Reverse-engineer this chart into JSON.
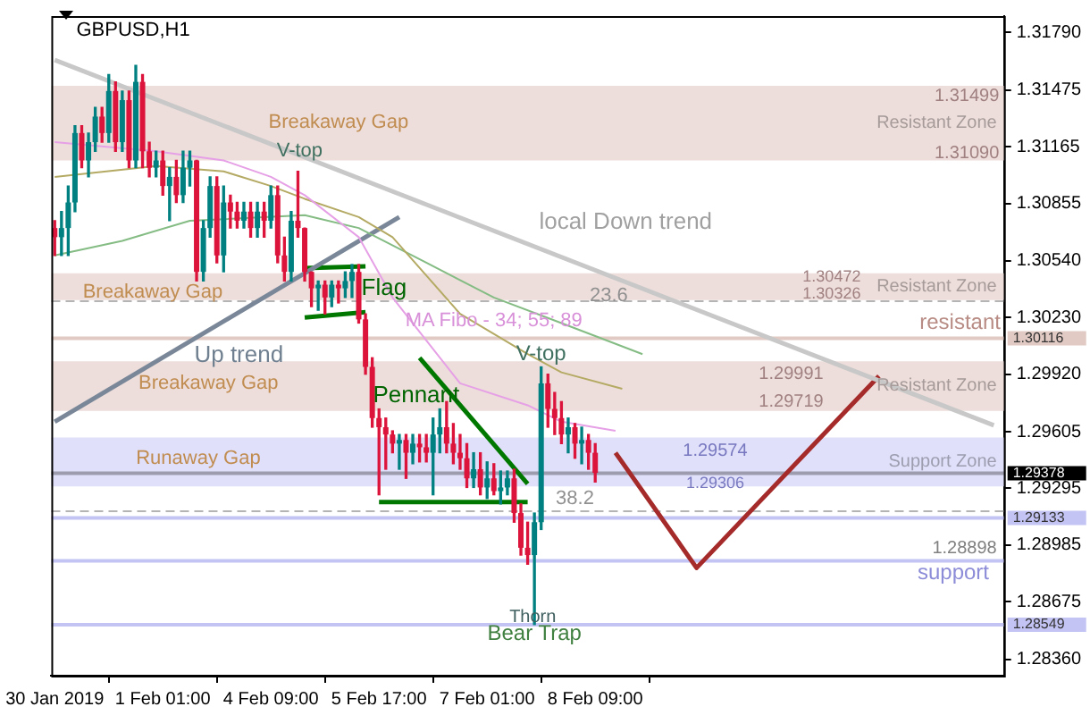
{
  "chart_data": {
    "type": "candlestick",
    "title": "GBPUSD,H1",
    "categories": [
      "30 Jan 2019",
      null,
      null,
      null,
      null,
      null,
      null,
      null,
      null,
      null,
      null,
      null,
      null,
      null,
      null,
      null,
      "1 Feb 01:00",
      null,
      null,
      null,
      null,
      null,
      null,
      null,
      null,
      null,
      null,
      null,
      null,
      null,
      null,
      null,
      "4 Feb 09:00",
      null,
      null,
      null,
      null,
      null,
      null,
      null,
      null,
      null,
      null,
      null,
      null,
      null,
      null,
      null,
      "5 Feb 17:00",
      null,
      null,
      null,
      null,
      null,
      null,
      null,
      null,
      null,
      null,
      null,
      null,
      null,
      null,
      null,
      "7 Feb 01:00",
      null,
      null,
      null,
      null,
      null,
      null,
      null,
      null,
      null,
      null,
      null,
      null,
      null,
      null,
      null,
      "8 Feb 09:00",
      null,
      null,
      null,
      null,
      null,
      null,
      null,
      null,
      null,
      null,
      null,
      null,
      null,
      null,
      null,
      null,
      null,
      null,
      null,
      null,
      null,
      null,
      null,
      null,
      null,
      null,
      null,
      null,
      null,
      null,
      null,
      null,
      null,
      null,
      null,
      null,
      null,
      null,
      null,
      null,
      null,
      null,
      null,
      null,
      null,
      null,
      null,
      null,
      null,
      null,
      null,
      null,
      null,
      null,
      null,
      null,
      null,
      null,
      null,
      null
    ],
    "ohlc": [
      [
        1.3072,
        1.3076,
        1.3057,
        1.3067
      ],
      [
        1.3067,
        1.3081,
        1.3057,
        1.3072
      ],
      [
        1.3072,
        1.3095,
        1.3057,
        1.3086
      ],
      [
        1.3086,
        1.3128,
        1.3081,
        1.3124
      ],
      [
        1.3124,
        1.3128,
        1.3105,
        1.3109
      ],
      [
        1.3109,
        1.3124,
        1.31,
        1.3119
      ],
      [
        1.3119,
        1.3138,
        1.3114,
        1.3133
      ],
      [
        1.3133,
        1.3138,
        1.3119,
        1.3124
      ],
      [
        1.3124,
        1.3156,
        1.3119,
        1.3147
      ],
      [
        1.3147,
        1.3152,
        1.3114,
        1.3119
      ],
      [
        1.3119,
        1.3147,
        1.3114,
        1.3142
      ],
      [
        1.3142,
        1.3147,
        1.3105,
        1.3109
      ],
      [
        1.3109,
        1.3161,
        1.3105,
        1.3152
      ],
      [
        1.3152,
        1.3156,
        1.3105,
        1.3114
      ],
      [
        1.3114,
        1.3119,
        1.31,
        1.3105
      ],
      [
        1.3105,
        1.3114,
        1.31,
        1.3109
      ],
      [
        1.3109,
        1.3114,
        1.309,
        1.3095
      ],
      [
        1.3095,
        1.3105,
        1.3076,
        1.31
      ],
      [
        1.31,
        1.3109,
        1.3086,
        1.309
      ],
      [
        1.309,
        1.3114,
        1.3086,
        1.3105
      ],
      [
        1.3105,
        1.3114,
        1.3095,
        1.3109
      ],
      [
        1.3109,
        1.3109,
        1.3043,
        1.3048
      ],
      [
        1.3048,
        1.3076,
        1.3043,
        1.3072
      ],
      [
        1.3072,
        1.31,
        1.3067,
        1.3095
      ],
      [
        1.3095,
        1.31,
        1.3053,
        1.3057
      ],
      [
        1.3057,
        1.3095,
        1.3048,
        1.3086
      ],
      [
        1.3086,
        1.309,
        1.3072,
        1.3081
      ],
      [
        1.3081,
        1.3086,
        1.3072,
        1.3076
      ],
      [
        1.3076,
        1.3086,
        1.3072,
        1.3081
      ],
      [
        1.3081,
        1.3086,
        1.3067,
        1.3072
      ],
      [
        1.3072,
        1.3086,
        1.3067,
        1.3081
      ],
      [
        1.3081,
        1.3086,
        1.3067,
        1.3076
      ],
      [
        1.3076,
        1.3095,
        1.3072,
        1.309
      ],
      [
        1.309,
        1.3095,
        1.3053,
        1.3057
      ],
      [
        1.3057,
        1.3067,
        1.3043,
        1.3048
      ],
      [
        1.3048,
        1.3081,
        1.3043,
        1.3076
      ],
      [
        1.3076,
        1.3103,
        1.3067,
        1.3072
      ],
      [
        1.3072,
        1.3072,
        1.3043,
        1.3048
      ],
      [
        1.3048,
        1.3048,
        1.3029,
        1.3039
      ],
      [
        1.3039,
        1.3043,
        1.3027,
        1.3041
      ],
      [
        1.3041,
        1.3043,
        1.3025,
        1.3034
      ],
      [
        1.3034,
        1.3043,
        1.3029,
        1.3041
      ],
      [
        1.3041,
        1.3043,
        1.3031,
        1.3039
      ],
      [
        1.3039,
        1.3048,
        1.3034,
        1.3043
      ],
      [
        1.3043,
        1.3052,
        1.3034,
        1.3048
      ],
      [
        1.3048,
        1.3052,
        1.302,
        1.3022
      ],
      [
        1.3022,
        1.3025,
        1.2992,
        1.2996
      ],
      [
        1.2996,
        1.3001,
        1.2963,
        1.2968
      ],
      [
        1.2968,
        1.2973,
        1.2926,
        1.2963
      ],
      [
        1.2963,
        1.2968,
        1.294,
        1.2959
      ],
      [
        1.2959,
        1.2961,
        1.2949,
        1.2954
      ],
      [
        1.2954,
        1.2959,
        1.294,
        1.2956
      ],
      [
        1.2956,
        1.2959,
        1.2935,
        1.2949
      ],
      [
        1.2949,
        1.2959,
        1.2943,
        1.2954
      ],
      [
        1.2954,
        1.2959,
        1.2944,
        1.2952
      ],
      [
        1.2952,
        1.2959,
        1.2944,
        1.2949
      ],
      [
        1.2949,
        1.2968,
        1.2926,
        1.2959
      ],
      [
        1.2959,
        1.2973,
        1.2949,
        1.2963
      ],
      [
        1.2963,
        1.2977,
        1.2949,
        1.2954
      ],
      [
        1.2954,
        1.2965,
        1.2943,
        1.2949
      ],
      [
        1.2949,
        1.2959,
        1.294,
        1.2946
      ],
      [
        1.2946,
        1.2954,
        1.293,
        1.2935
      ],
      [
        1.2935,
        1.2949,
        1.293,
        1.294
      ],
      [
        1.294,
        1.2949,
        1.2926,
        1.293
      ],
      [
        1.293,
        1.2944,
        1.2924,
        1.2935
      ],
      [
        1.2935,
        1.2943,
        1.2926,
        1.2928
      ],
      [
        1.2928,
        1.2939,
        1.2921,
        1.293
      ],
      [
        1.293,
        1.2939,
        1.2926,
        1.2935
      ],
      [
        1.2935,
        1.294,
        1.2911,
        1.2916
      ],
      [
        1.2916,
        1.2921,
        1.2893,
        1.2897
      ],
      [
        1.2897,
        1.2911,
        1.2888,
        1.2893
      ],
      [
        1.2893,
        1.2916,
        1.2855,
        1.2911
      ],
      [
        1.2911,
        1.2996,
        1.2907,
        1.2987
      ],
      [
        1.2987,
        1.2992,
        1.2963,
        1.2973
      ],
      [
        1.2973,
        1.2982,
        1.2959,
        1.2968
      ],
      [
        1.2968,
        1.2977,
        1.2954,
        1.2959
      ],
      [
        1.2959,
        1.2968,
        1.2949,
        1.2963
      ],
      [
        1.2963,
        1.2965,
        1.2946,
        1.2954
      ],
      [
        1.2954,
        1.2963,
        1.2943,
        1.2956
      ],
      [
        1.2956,
        1.2959,
        1.294,
        1.2949
      ],
      [
        1.2949,
        1.2954,
        1.2933,
        1.2938
      ],
      null,
      null,
      null,
      null,
      null,
      null,
      null,
      null,
      null,
      null,
      null,
      null,
      null,
      null,
      null,
      null,
      null,
      null,
      null,
      null,
      null,
      null,
      null,
      null,
      null,
      null,
      null,
      null,
      null,
      null,
      null,
      null,
      null,
      null,
      null,
      null,
      null,
      null,
      null,
      null,
      null,
      null,
      null,
      null,
      null,
      null,
      null,
      null,
      null,
      null,
      null,
      null,
      null,
      null,
      null,
      null,
      null,
      null,
      null,
      null
    ],
    "colors": [
      "#dc143c",
      "#008080",
      "#008080",
      "#008080",
      "#dc143c",
      "#008080",
      "#008080",
      "#dc143c",
      "#008080",
      "#dc143c",
      "#008080",
      "#dc143c",
      "#008080",
      "#dc143c",
      "#dc143c",
      "#008080",
      "#dc143c",
      "#008080",
      "#dc143c",
      "#008080",
      "#008080",
      "#dc143c",
      "#008080",
      "#008080",
      "#dc143c",
      "#008080",
      "#dc143c",
      "#dc143c",
      "#008080",
      "#dc143c",
      "#008080",
      "#dc143c",
      "#008080",
      "#dc143c",
      "#dc143c",
      "#008080",
      "#dc143c",
      "#dc143c",
      "#dc143c",
      "#008080",
      "#dc143c",
      "#008080",
      "#dc143c",
      "#008080",
      "#008080",
      "#dc143c",
      "#dc143c",
      "#dc143c",
      "#dc143c",
      "#dc143c",
      "#dc143c",
      "#008080",
      "#dc143c",
      "#008080",
      "#dc143c",
      "#dc143c",
      "#008080",
      "#008080",
      "#dc143c",
      "#dc143c",
      "#dc143c",
      "#dc143c",
      "#008080",
      "#dc143c",
      "#008080",
      "#dc143c",
      "#008080",
      "#008080",
      "#dc143c",
      "#dc143c",
      "#dc143c",
      "#008080",
      "#008080",
      "#dc143c",
      "#dc143c",
      "#dc143c",
      "#008080",
      "#dc143c",
      "#008080",
      "#dc143c",
      "#dc143c",
      null,
      null,
      null,
      null,
      null,
      null,
      null,
      null,
      null,
      null,
      null,
      null,
      null,
      null,
      null,
      null,
      null,
      null,
      null,
      null,
      null,
      null,
      null,
      null,
      null,
      null,
      null,
      null,
      null,
      null,
      null,
      null,
      null,
      null,
      null,
      null,
      null,
      null,
      null,
      null,
      null,
      null,
      null,
      null,
      null,
      null,
      null,
      null,
      null,
      null,
      null,
      null,
      null,
      null,
      null,
      null,
      null,
      null,
      null,
      null
    ],
    "series": [
      {
        "type": "line",
        "color": "#e6a0e6",
        "values": [
          1.3119,
          null,
          null,
          null,
          null,
          null,
          null,
          null,
          null,
          null,
          null,
          null,
          null,
          null,
          null,
          1.3114,
          null,
          null,
          null,
          null,
          null,
          null,
          null,
          null,
          null,
          1.3109,
          null,
          null,
          null,
          null,
          null,
          null,
          1.31,
          null,
          null,
          null,
          null,
          1.309,
          null,
          null,
          null,
          null,
          null,
          null,
          null,
          1.3067,
          null,
          null,
          null,
          null,
          1.3034,
          null,
          null,
          null,
          null,
          null,
          null,
          null,
          null,
          null,
          1.2987,
          null,
          null,
          null,
          null,
          null,
          null,
          null,
          null,
          null,
          1.2975,
          null,
          null,
          null,
          null,
          1.2966,
          null,
          null,
          null,
          null,
          null,
          null,
          null,
          1.2961,
          null,
          null,
          null,
          null,
          null,
          null,
          null,
          null,
          null,
          null,
          null,
          null,
          null,
          null,
          null,
          null,
          null,
          null,
          null,
          null,
          null,
          null,
          null,
          null,
          null,
          null,
          null,
          null,
          null,
          null,
          null,
          null,
          null,
          null,
          null,
          null,
          null,
          null,
          null,
          null,
          null,
          null,
          null,
          null,
          null,
          null,
          null,
          null,
          null,
          null,
          null,
          null,
          null,
          null,
          null,
          null,
          null
        ]
      },
      {
        "type": "line",
        "color": "#b4aa64",
        "values": [
          1.31,
          null,
          null,
          null,
          null,
          null,
          null,
          null,
          null,
          null,
          null,
          null,
          null,
          null,
          null,
          1.3106,
          null,
          null,
          null,
          null,
          null,
          null,
          null,
          null,
          null,
          1.3103,
          null,
          null,
          null,
          null,
          null,
          null,
          1.3095,
          null,
          null,
          null,
          null,
          1.3088,
          null,
          null,
          null,
          null,
          null,
          null,
          null,
          1.3078,
          null,
          null,
          null,
          null,
          1.3067,
          null,
          null,
          null,
          null,
          null,
          null,
          null,
          null,
          null,
          1.3025,
          null,
          null,
          null,
          null,
          null,
          null,
          null,
          null,
          null,
          1.3003,
          null,
          null,
          null,
          null,
          1.2993,
          null,
          null,
          null,
          null,
          null,
          null,
          null,
          null,
          1.2984,
          null,
          null,
          null,
          null,
          null,
          null,
          null,
          null,
          null,
          null,
          null,
          null,
          null,
          null,
          null,
          null,
          null,
          null,
          null,
          null,
          null,
          null,
          null,
          null,
          null,
          null,
          null,
          null,
          null,
          null,
          null,
          null,
          null,
          null,
          null,
          null,
          null,
          null,
          null,
          null,
          null,
          null,
          null,
          null,
          null,
          null,
          null,
          null,
          null,
          null,
          null,
          null,
          null,
          null,
          null,
          null
        ]
      },
      {
        "type": "line",
        "color": "#84bc84",
        "values": [
          1.3057,
          null,
          null,
          null,
          null,
          null,
          null,
          null,
          null,
          null,
          1.3065,
          null,
          null,
          null,
          null,
          null,
          null,
          null,
          null,
          null,
          1.3076,
          null,
          null,
          null,
          null,
          null,
          null,
          null,
          null,
          null,
          null,
          null,
          null,
          null,
          null,
          null,
          null,
          1.3079,
          null,
          null,
          null,
          null,
          null,
          null,
          null,
          1.3072,
          null,
          null,
          null,
          null,
          null,
          null,
          null,
          null,
          null,
          1.3053,
          null,
          null,
          null,
          null,
          null,
          null,
          null,
          null,
          null,
          1.3034,
          null,
          null,
          null,
          null,
          null,
          null,
          null,
          null,
          null,
          1.302,
          null,
          null,
          null,
          null,
          null,
          null,
          null,
          null,
          null,
          null,
          null,
          1.3003,
          null,
          null,
          null,
          null,
          null,
          null,
          null,
          null,
          null,
          null,
          null,
          null,
          null,
          null,
          null,
          null,
          null,
          null,
          null,
          null,
          null,
          null,
          null,
          null,
          null,
          null,
          null,
          null,
          null,
          null,
          null,
          null,
          null,
          null,
          null,
          null,
          null,
          null,
          null,
          null,
          null,
          null,
          null,
          null,
          null,
          null,
          null,
          null,
          null,
          null,
          null,
          null,
          null
        ]
      },
      {
        "type": "line",
        "color": "#c8c8c8",
        "values": [
          1.3164,
          null,
          null,
          null,
          null,
          null,
          null,
          null,
          null,
          null,
          null,
          null,
          null,
          null,
          null,
          null,
          null,
          null,
          null,
          null,
          null,
          null,
          null,
          null,
          null,
          null,
          null,
          null,
          null,
          null,
          null,
          null,
          null,
          null,
          null,
          null,
          null,
          null,
          null,
          null,
          null,
          null,
          null,
          null,
          null,
          null,
          null,
          null,
          null,
          null,
          null,
          null,
          null,
          null,
          null,
          null,
          null,
          null,
          null,
          null,
          null,
          null,
          null,
          null,
          null,
          null,
          null,
          null,
          null,
          null,
          null,
          null,
          null,
          null,
          null,
          null,
          null,
          null,
          null,
          null,
          null,
          null,
          null,
          null,
          null,
          null,
          null,
          null,
          null,
          null,
          null,
          null,
          null,
          null,
          null,
          null,
          null,
          null,
          null,
          null,
          null,
          null,
          null,
          null,
          null,
          null,
          null,
          null,
          null,
          null,
          null,
          null,
          null,
          null,
          null,
          null,
          null,
          null,
          null,
          null,
          null,
          null,
          null,
          null,
          null,
          null,
          null,
          null,
          null,
          null,
          null,
          null,
          null,
          null,
          null,
          null,
          null,
          null,
          null,
          1.2964,
          null
        ]
      },
      {
        "type": "line",
        "color": "#7a8798",
        "values": [
          1.2966,
          null,
          null,
          null,
          null,
          null,
          null,
          null,
          null,
          null,
          null,
          null,
          null,
          null,
          null,
          null,
          null,
          null,
          null,
          null,
          null,
          null,
          null,
          null,
          null,
          null,
          null,
          null,
          null,
          null,
          null,
          null,
          null,
          null,
          null,
          null,
          null,
          null,
          null,
          null,
          null,
          null,
          null,
          null,
          null,
          null,
          null,
          null,
          null,
          null,
          null,
          1.3078,
          null,
          null,
          null,
          null,
          null,
          null,
          null,
          null,
          null,
          null,
          null,
          null,
          null,
          null,
          null,
          null,
          null,
          null,
          null,
          null,
          null,
          null,
          null,
          null,
          null,
          null,
          null,
          null,
          null,
          null,
          null,
          null,
          null,
          null,
          null,
          null,
          null,
          null,
          null,
          null,
          null,
          null,
          null,
          null,
          null,
          null,
          null,
          null,
          null,
          null,
          null,
          null,
          null,
          null,
          null,
          null,
          null,
          null,
          null,
          null,
          null,
          null,
          null,
          null,
          null,
          null,
          null,
          null,
          null,
          null,
          null,
          null,
          null,
          null,
          null,
          null,
          null,
          null,
          null,
          null,
          null,
          null,
          null,
          null,
          null,
          null,
          null,
          null,
          null
        ]
      },
      {
        "type": "line",
        "color": "#007800",
        "values": [
          null,
          null,
          null,
          null,
          null,
          null,
          null,
          null,
          null,
          null,
          null,
          null,
          null,
          null,
          null,
          null,
          null,
          null,
          null,
          null,
          null,
          null,
          null,
          null,
          null,
          null,
          null,
          null,
          null,
          null,
          null,
          null,
          null,
          null,
          null,
          null,
          null,
          1.305,
          null,
          null,
          null,
          null,
          null,
          null,
          null,
          null,
          1.3051,
          null,
          null,
          null,
          null,
          null,
          null,
          null,
          null,
          null,
          null,
          null,
          null,
          null,
          null,
          null,
          null,
          null,
          null,
          null,
          null,
          null,
          null,
          null,
          null,
          null,
          null,
          null,
          null,
          null,
          null,
          null,
          null,
          null,
          null,
          null,
          null,
          null,
          null,
          null,
          null,
          null,
          null,
          null,
          null,
          null,
          null,
          null,
          null,
          null,
          null,
          null,
          null,
          null,
          null,
          null,
          null,
          null,
          null,
          null,
          null,
          null,
          null,
          null,
          null,
          null,
          null,
          null,
          null,
          null,
          null,
          null,
          null,
          null,
          null,
          null,
          null,
          null,
          null,
          null,
          null,
          null,
          null,
          null,
          null,
          null,
          null,
          null,
          null,
          null,
          null,
          null,
          null,
          null,
          null
        ]
      },
      {
        "type": "line",
        "color": "#007800",
        "values": [
          null,
          null,
          null,
          null,
          null,
          null,
          null,
          null,
          null,
          null,
          null,
          null,
          null,
          null,
          null,
          null,
          null,
          null,
          null,
          null,
          null,
          null,
          null,
          null,
          null,
          null,
          null,
          null,
          null,
          null,
          null,
          null,
          null,
          null,
          null,
          null,
          null,
          1.3023,
          null,
          null,
          null,
          null,
          null,
          null,
          null,
          null,
          1.3026,
          null,
          null,
          null,
          null,
          null,
          null,
          null,
          null,
          null,
          null,
          null,
          null,
          null,
          null,
          null,
          null,
          null,
          null,
          null,
          null,
          null,
          null,
          null,
          null,
          null,
          null,
          null,
          null,
          null,
          null,
          null,
          null,
          null,
          null,
          null,
          null,
          null,
          null,
          null,
          null,
          null,
          null,
          null,
          null,
          null,
          null,
          null,
          null,
          null,
          null,
          null,
          null,
          null,
          null,
          null,
          null,
          null,
          null,
          null,
          null,
          null,
          null,
          null,
          null,
          null,
          null,
          null,
          null,
          null,
          null,
          null,
          null,
          null,
          null,
          null,
          null,
          null,
          null,
          null,
          null,
          null,
          null,
          null,
          null,
          null,
          null,
          null,
          null,
          null,
          null,
          null,
          null,
          null,
          null
        ]
      },
      {
        "type": "line",
        "color": "#007800",
        "values": [
          null,
          null,
          null,
          null,
          null,
          null,
          null,
          null,
          null,
          null,
          null,
          null,
          null,
          null,
          null,
          null,
          null,
          null,
          null,
          null,
          null,
          null,
          null,
          null,
          null,
          null,
          null,
          null,
          null,
          null,
          null,
          null,
          null,
          null,
          null,
          null,
          null,
          null,
          null,
          null,
          null,
          null,
          null,
          null,
          null,
          null,
          null,
          null,
          null,
          null,
          null,
          null,
          null,
          null,
          1.3001,
          null,
          null,
          null,
          null,
          null,
          null,
          null,
          null,
          null,
          null,
          null,
          null,
          null,
          null,
          null,
          1.2932,
          null,
          null,
          null,
          null,
          null,
          null,
          null,
          null,
          null,
          null,
          null,
          null,
          null,
          null,
          null,
          null,
          null,
          null,
          null,
          null,
          null,
          null,
          null,
          null,
          null,
          null,
          null,
          null,
          null,
          null,
          null,
          null,
          null,
          null,
          null,
          null,
          null,
          null,
          null,
          null,
          null,
          null,
          null,
          null,
          null,
          null,
          null,
          null,
          null,
          null,
          null,
          null,
          null,
          null,
          null,
          null,
          null,
          null,
          null,
          null,
          null,
          null,
          null,
          null,
          null,
          null,
          null,
          null,
          null,
          null
        ]
      },
      {
        "type": "line",
        "color": "#007800",
        "values": [
          null,
          null,
          null,
          null,
          null,
          null,
          null,
          null,
          null,
          null,
          null,
          null,
          null,
          null,
          null,
          null,
          null,
          null,
          null,
          null,
          null,
          null,
          null,
          null,
          null,
          null,
          null,
          null,
          null,
          null,
          null,
          null,
          null,
          null,
          null,
          null,
          null,
          null,
          null,
          null,
          null,
          null,
          null,
          null,
          null,
          null,
          null,
          null,
          1.2922,
          null,
          null,
          null,
          null,
          null,
          null,
          null,
          null,
          null,
          null,
          null,
          null,
          null,
          null,
          null,
          null,
          null,
          null,
          null,
          null,
          null,
          1.2922,
          null,
          null,
          null,
          null,
          null,
          null,
          null,
          null,
          null,
          null,
          null,
          null,
          null,
          null,
          null,
          null,
          null,
          null,
          null,
          null,
          null,
          null,
          null,
          null,
          null,
          null,
          null,
          null,
          null,
          null,
          null,
          null,
          null,
          null,
          null,
          null,
          null,
          null,
          null,
          null,
          null,
          null,
          null,
          null,
          null,
          null,
          null,
          null,
          null,
          null,
          null,
          null,
          null,
          null,
          null,
          null,
          null,
          null,
          null,
          null,
          null,
          null,
          null,
          null,
          null,
          null,
          null,
          null,
          null,
          null
        ]
      },
      {
        "type": "line",
        "color": "#a52a2a",
        "values": [
          null,
          null,
          null,
          null,
          null,
          null,
          null,
          null,
          null,
          null,
          null,
          null,
          null,
          null,
          null,
          null,
          null,
          null,
          null,
          null,
          null,
          null,
          null,
          null,
          null,
          null,
          null,
          null,
          null,
          null,
          null,
          null,
          null,
          null,
          null,
          null,
          null,
          null,
          null,
          null,
          null,
          null,
          null,
          null,
          null,
          null,
          null,
          null,
          null,
          null,
          null,
          null,
          null,
          null,
          null,
          null,
          null,
          null,
          null,
          null,
          null,
          null,
          null,
          null,
          null,
          null,
          null,
          null,
          null,
          null,
          null,
          null,
          null,
          null,
          null,
          null,
          null,
          null,
          null,
          null,
          null,
          null,
          null,
          1.2949,
          null,
          null,
          null,
          null,
          null,
          null,
          null,
          null,
          null,
          null,
          null,
          1.2886,
          null,
          null,
          null,
          null,
          null,
          null,
          null,
          null,
          null,
          null,
          null,
          null,
          null,
          null,
          null,
          null,
          null,
          null,
          null,
          null,
          null,
          null,
          null,
          null,
          null,
          null,
          1.2991,
          null,
          null,
          null,
          null,
          null,
          null,
          null,
          null,
          null,
          null,
          null,
          null,
          null,
          null,
          null,
          null,
          null,
          null
        ]
      }
    ],
    "ylim": [
      1.2827,
      1.3188
    ],
    "yticks": [
      {
        "value": 1.3179,
        "label": "1.31790"
      },
      1.31475,
      1.31165,
      1.30855,
      {
        "value": 1.3054,
        "label": "1.30540"
      },
      {
        "value": 1.3023,
        "label": "1.30230"
      },
      {
        "value": 1.2992,
        "label": "1.29920"
      },
      1.29605,
      1.29295,
      1.28985,
      1.28675,
      {
        "value": 1.2836,
        "label": "1.28360"
      }
    ],
    "bands": [
      {
        "axis": "y",
        "from": 1.3109,
        "to": 1.31499,
        "label": "Resistant Zone",
        "color": "#eddedb"
      },
      {
        "axis": "y",
        "from": 1.30326,
        "to": 1.30472,
        "label": "Resistant Zone",
        "color": "#eddedb"
      },
      {
        "axis": "y",
        "from": 1.29719,
        "to": 1.29991,
        "label": "Resistant Zone",
        "color": "#eddedb"
      },
      {
        "axis": "y",
        "from": 1.29306,
        "to": 1.29574,
        "label": "Support Zone",
        "color": "#e0e0fa"
      }
    ],
    "ref_lines": [
      {
        "axis": "y",
        "value": 1.30116,
        "label": "1.30116",
        "color": "#e2cac4",
        "line_style": "solid"
      },
      {
        "axis": "y",
        "value": 1.29378,
        "label": "1.29378",
        "color": "#000000",
        "line_style": "solid"
      },
      {
        "axis": "y",
        "value": 1.29133,
        "label": "1.29133",
        "color": "#c4c4f4",
        "line_style": "solid"
      },
      {
        "axis": "y",
        "value": 1.28898,
        "label": "1.28898",
        "color": "#c4c4f4"
      },
      {
        "axis": "y",
        "value": 1.28549,
        "label": "1.28549",
        "color": "#c4c4f4",
        "line_style": "solid"
      },
      {
        "axis": "y",
        "value": 1.3032,
        "color": "#b4b4b4",
        "line_style": "dashed"
      },
      {
        "axis": "y",
        "value": 1.2917,
        "color": "#b4b4b4",
        "line_style": "dashed"
      }
    ],
    "annotations": [
      "V-top",
      "Flag",
      "Up trend",
      "local Down trend",
      "MA Fibo - 34; 55; 89",
      "Pennant",
      "V-top",
      "Thorn",
      "Bear Trap",
      "Breakaway Gap",
      "Breakaway Gap",
      "Breakaway Gap",
      "Runaway Gap",
      "1.31499",
      "1.31090",
      "1.30472",
      "1.30326",
      "1.29991",
      "1.29719",
      "1.29574",
      "1.29306",
      "resistant",
      "support",
      "23.6",
      "38.2"
    ]
  }
}
